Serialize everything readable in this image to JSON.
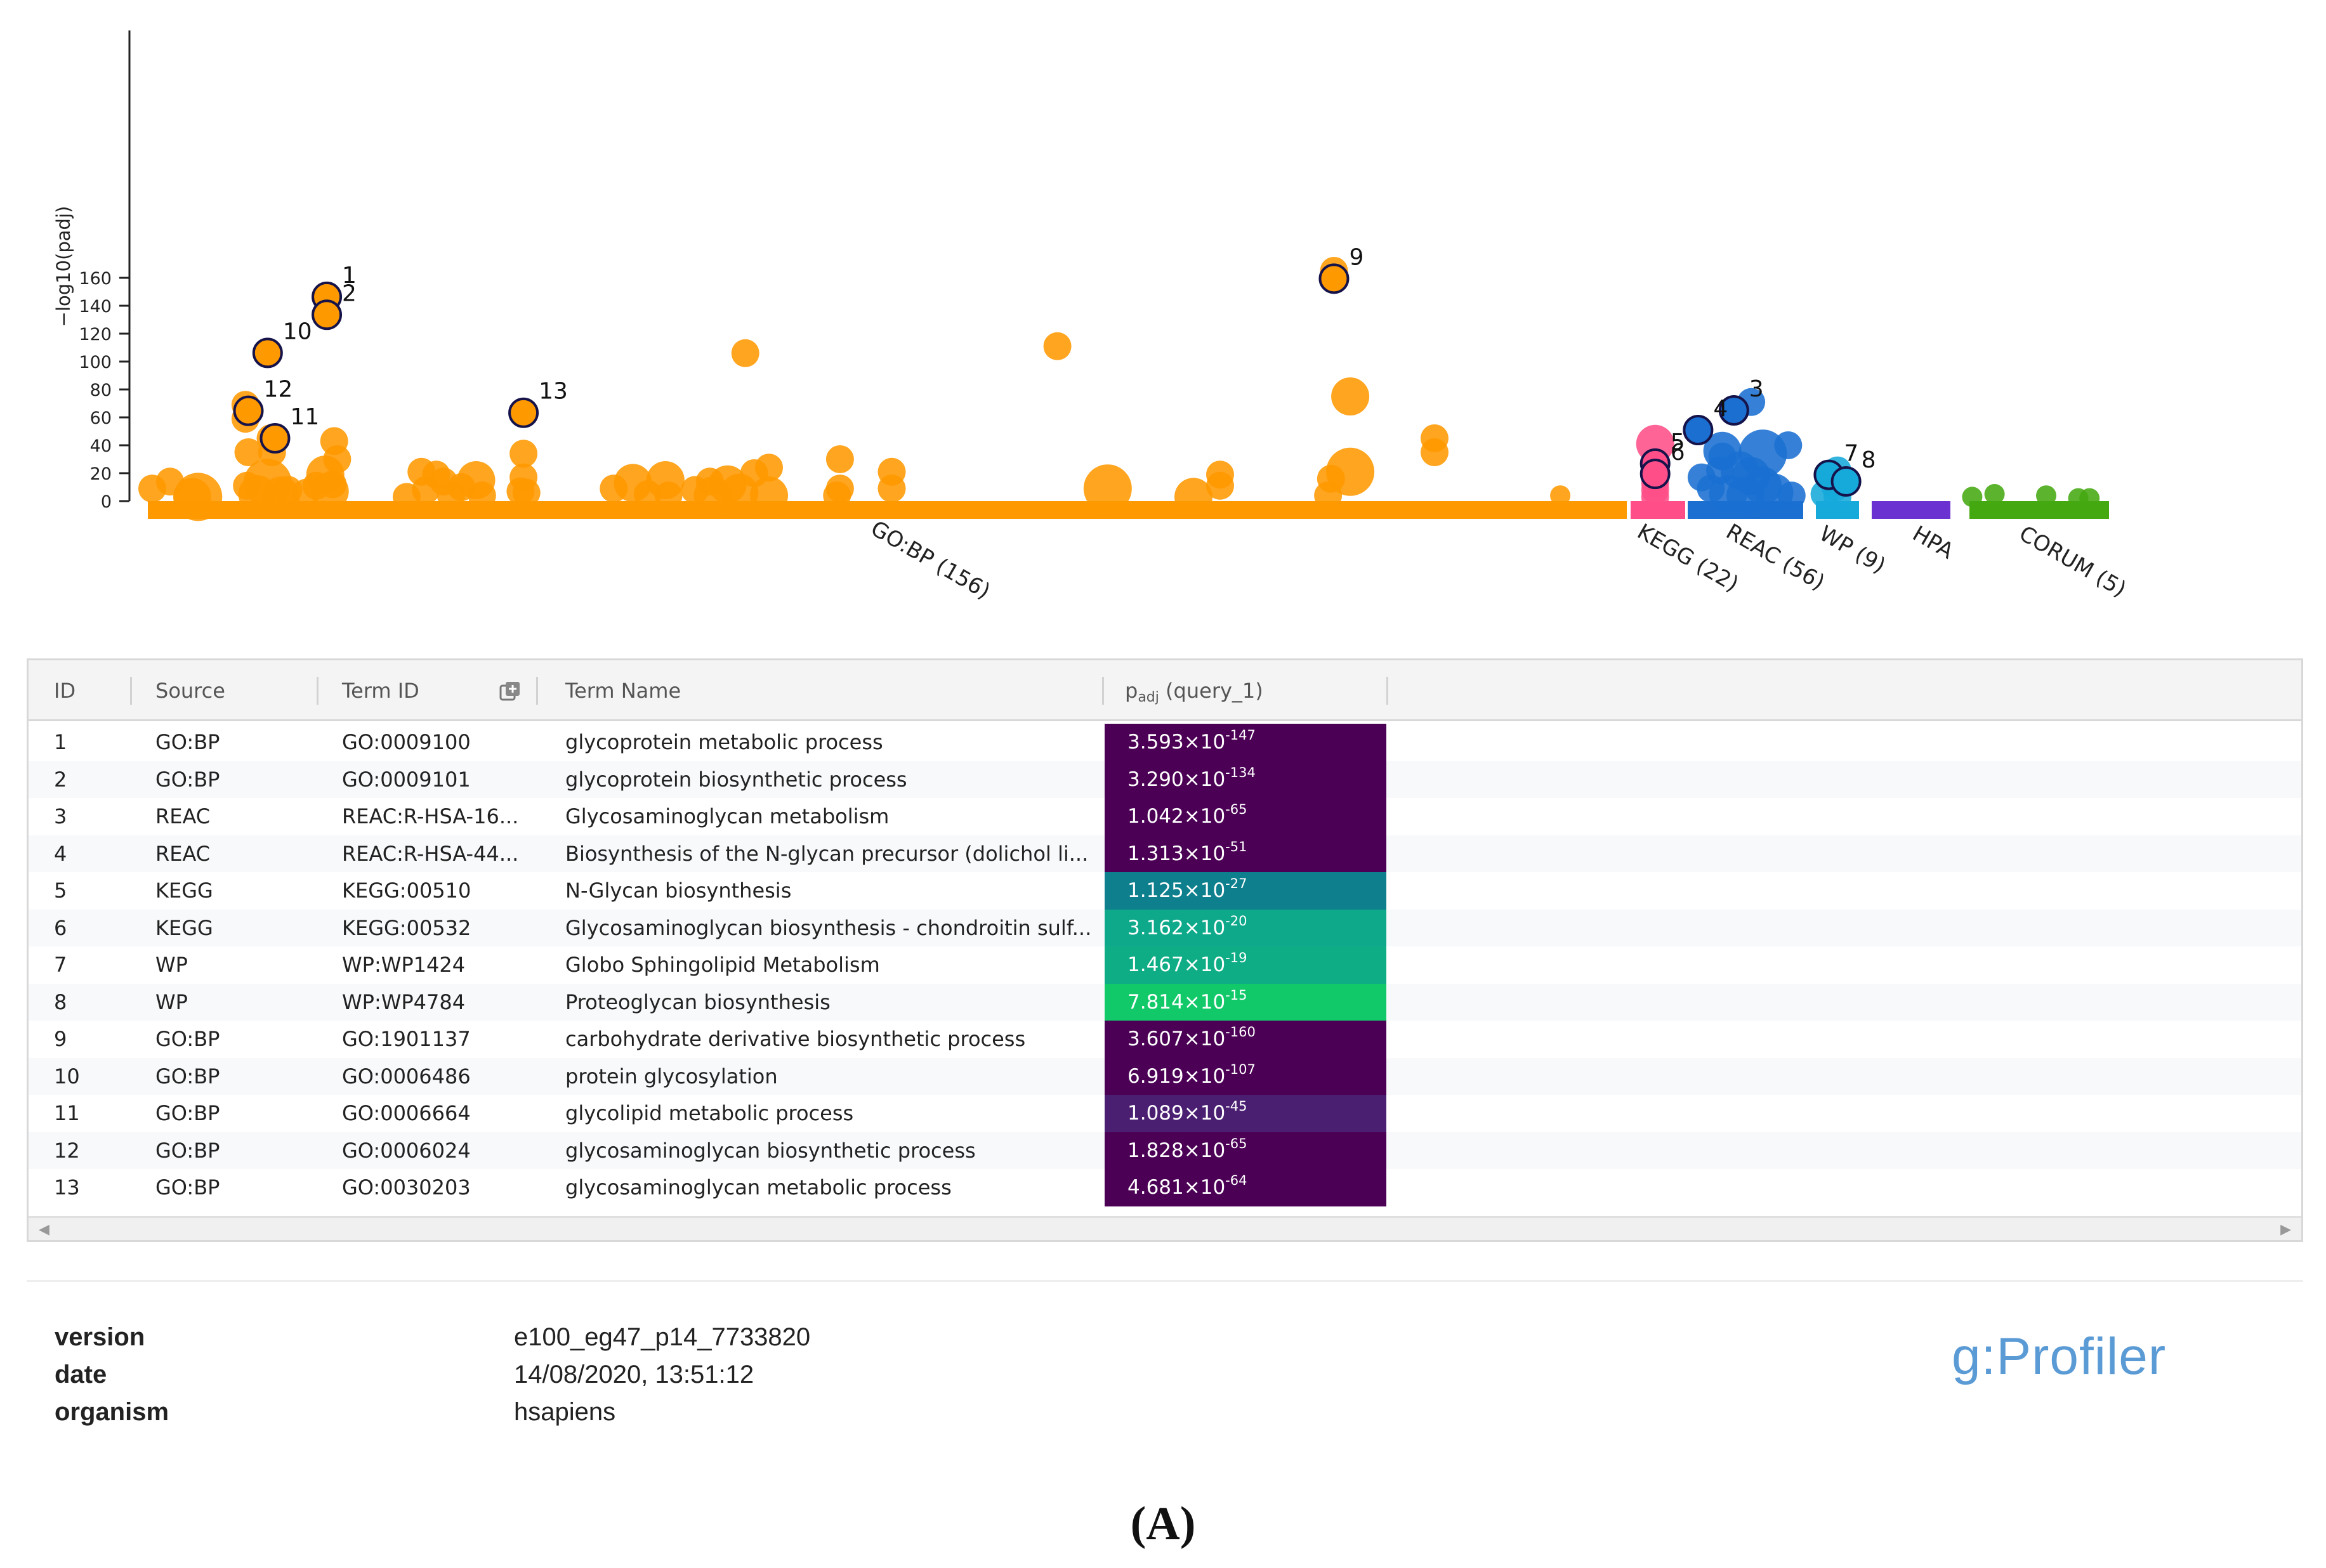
{
  "chart_data": {
    "type": "scatter",
    "ylabel": "−log10(padj)",
    "y_ticks": [
      0,
      20,
      40,
      60,
      80,
      100,
      120,
      140,
      160
    ],
    "ylim": [
      0,
      165
    ],
    "sources": [
      {
        "name": "GO:BP (156)",
        "color": "#ff9900"
      },
      {
        "name": "KEGG (22)",
        "color": "#ff4e88"
      },
      {
        "name": "REAC (56)",
        "color": "#1a6fd1"
      },
      {
        "name": "WP (9)",
        "color": "#16aadb"
      },
      {
        "name": "HPA",
        "color": "#6b31d1"
      },
      {
        "name": "CORUM (5)",
        "color": "#44a811"
      }
    ],
    "highlighted": [
      {
        "id": "1",
        "source": "GO:BP (156)",
        "pos": 0.121,
        "y": 146.4
      },
      {
        "id": "2",
        "source": "GO:BP (156)",
        "pos": 0.121,
        "y": 133.5
      },
      {
        "id": "10",
        "source": "GO:BP (156)",
        "pos": 0.081,
        "y": 106.2
      },
      {
        "id": "12",
        "source": "GO:BP (156)",
        "pos": 0.068,
        "y": 64.7
      },
      {
        "id": "11",
        "source": "GO:BP (156)",
        "pos": 0.086,
        "y": 45.0
      },
      {
        "id": "13",
        "source": "GO:BP (156)",
        "pos": 0.254,
        "y": 63.3
      },
      {
        "id": "9",
        "source": "GO:BP (156)",
        "pos": 0.802,
        "y": 159.4
      },
      {
        "id": "5",
        "source": "KEGG (22)",
        "pos": 0.45,
        "y": 26.9
      },
      {
        "id": "6",
        "source": "KEGG (22)",
        "pos": 0.45,
        "y": 19.5
      },
      {
        "id": "3",
        "source": "REAC (56)",
        "pos": 0.4,
        "y": 65.0
      },
      {
        "id": "4",
        "source": "REAC (56)",
        "pos": 0.09,
        "y": 50.9
      },
      {
        "id": "7",
        "source": "WP (9)",
        "pos": 0.3,
        "y": 18.8
      },
      {
        "id": "8",
        "source": "WP (9)",
        "pos": 0.7,
        "y": 14.1
      }
    ],
    "points": [
      {
        "source": "GO:BP (156)",
        "pos": 0.003,
        "y": 9,
        "r": 1
      },
      {
        "source": "GO:BP (156)",
        "pos": 0.015,
        "y": 14,
        "r": 1
      },
      {
        "source": "GO:BP (156)",
        "pos": 0.03,
        "y": 3,
        "r": 2
      },
      {
        "source": "GO:BP (156)",
        "pos": 0.034,
        "y": 3,
        "r": 3
      },
      {
        "source": "GO:BP (156)",
        "pos": 0.066,
        "y": 69,
        "r": 1
      },
      {
        "source": "GO:BP (156)",
        "pos": 0.066,
        "y": 59,
        "r": 1
      },
      {
        "source": "GO:BP (156)",
        "pos": 0.068,
        "y": 35,
        "r": 1
      },
      {
        "source": "GO:BP (156)",
        "pos": 0.067,
        "y": 11,
        "r": 1
      },
      {
        "source": "GO:BP (156)",
        "pos": 0.074,
        "y": 5,
        "r": 2
      },
      {
        "source": "GO:BP (156)",
        "pos": 0.081,
        "y": 13,
        "r": 3
      },
      {
        "source": "GO:BP (156)",
        "pos": 0.084,
        "y": 35,
        "r": 1
      },
      {
        "source": "GO:BP (156)",
        "pos": 0.083,
        "y": 45,
        "r": 1
      },
      {
        "source": "GO:BP (156)",
        "pos": 0.09,
        "y": 4,
        "r": 2
      },
      {
        "source": "GO:BP (156)",
        "pos": 0.095,
        "y": 8,
        "r": 1
      },
      {
        "source": "GO:BP (156)",
        "pos": 0.107,
        "y": 6,
        "r": 1
      },
      {
        "source": "GO:BP (156)",
        "pos": 0.114,
        "y": 11,
        "r": 1
      },
      {
        "source": "GO:BP (156)",
        "pos": 0.12,
        "y": 19,
        "r": 2
      },
      {
        "source": "GO:BP (156)",
        "pos": 0.123,
        "y": 7,
        "r": 2
      },
      {
        "source": "GO:BP (156)",
        "pos": 0.126,
        "y": 43,
        "r": 1
      },
      {
        "source": "GO:BP (156)",
        "pos": 0.128,
        "y": 30,
        "r": 1
      },
      {
        "source": "GO:BP (156)",
        "pos": 0.125,
        "y": 12,
        "r": 1
      },
      {
        "source": "GO:BP (156)",
        "pos": 0.175,
        "y": 3,
        "r": 1
      },
      {
        "source": "GO:BP (156)",
        "pos": 0.185,
        "y": 21,
        "r": 1
      },
      {
        "source": "GO:BP (156)",
        "pos": 0.188,
        "y": 8,
        "r": 1
      },
      {
        "source": "GO:BP (156)",
        "pos": 0.195,
        "y": 19,
        "r": 1
      },
      {
        "source": "GO:BP (156)",
        "pos": 0.2,
        "y": 14,
        "r": 1
      },
      {
        "source": "GO:BP (156)",
        "pos": 0.205,
        "y": 4,
        "r": 1
      },
      {
        "source": "GO:BP (156)",
        "pos": 0.212,
        "y": 10,
        "r": 1
      },
      {
        "source": "GO:BP (156)",
        "pos": 0.222,
        "y": 15,
        "r": 2
      },
      {
        "source": "GO:BP (156)",
        "pos": 0.226,
        "y": 4,
        "r": 1
      },
      {
        "source": "GO:BP (156)",
        "pos": 0.254,
        "y": 34,
        "r": 1
      },
      {
        "source": "GO:BP (156)",
        "pos": 0.254,
        "y": 17,
        "r": 1
      },
      {
        "source": "GO:BP (156)",
        "pos": 0.252,
        "y": 7,
        "r": 1
      },
      {
        "source": "GO:BP (156)",
        "pos": 0.256,
        "y": 6,
        "r": 1
      },
      {
        "source": "GO:BP (156)",
        "pos": 0.315,
        "y": 9,
        "r": 1
      },
      {
        "source": "GO:BP (156)",
        "pos": 0.328,
        "y": 13,
        "r": 2
      },
      {
        "source": "GO:BP (156)",
        "pos": 0.338,
        "y": 5,
        "r": 1
      },
      {
        "source": "GO:BP (156)",
        "pos": 0.35,
        "y": 15,
        "r": 2
      },
      {
        "source": "GO:BP (156)",
        "pos": 0.352,
        "y": 4,
        "r": 1
      },
      {
        "source": "GO:BP (156)",
        "pos": 0.37,
        "y": 8,
        "r": 1
      },
      {
        "source": "GO:BP (156)",
        "pos": 0.38,
        "y": 14,
        "r": 1
      },
      {
        "source": "GO:BP (156)",
        "pos": 0.382,
        "y": 4,
        "r": 2
      },
      {
        "source": "GO:BP (156)",
        "pos": 0.392,
        "y": 12,
        "r": 2
      },
      {
        "source": "GO:BP (156)",
        "pos": 0.4,
        "y": 6,
        "r": 2
      },
      {
        "source": "GO:BP (156)",
        "pos": 0.41,
        "y": 20,
        "r": 1
      },
      {
        "source": "GO:BP (156)",
        "pos": 0.42,
        "y": 24,
        "r": 1
      },
      {
        "source": "GO:BP (156)",
        "pos": 0.42,
        "y": 4,
        "r": 2
      },
      {
        "source": "GO:BP (156)",
        "pos": 0.404,
        "y": 106,
        "r": 1
      },
      {
        "source": "GO:BP (156)",
        "pos": 0.468,
        "y": 30,
        "r": 1
      },
      {
        "source": "GO:BP (156)",
        "pos": 0.468,
        "y": 9,
        "r": 1
      },
      {
        "source": "GO:BP (156)",
        "pos": 0.466,
        "y": 4,
        "r": 1
      },
      {
        "source": "GO:BP (156)",
        "pos": 0.503,
        "y": 21,
        "r": 1
      },
      {
        "source": "GO:BP (156)",
        "pos": 0.503,
        "y": 9,
        "r": 1
      },
      {
        "source": "GO:BP (156)",
        "pos": 0.615,
        "y": 111,
        "r": 1
      },
      {
        "source": "GO:BP (156)",
        "pos": 0.649,
        "y": 9,
        "r": 3
      },
      {
        "source": "GO:BP (156)",
        "pos": 0.707,
        "y": 3,
        "r": 2
      },
      {
        "source": "GO:BP (156)",
        "pos": 0.725,
        "y": 19,
        "r": 1
      },
      {
        "source": "GO:BP (156)",
        "pos": 0.725,
        "y": 11,
        "r": 1
      },
      {
        "source": "GO:BP (156)",
        "pos": 0.802,
        "y": 165,
        "r": 1
      },
      {
        "source": "GO:BP (156)",
        "pos": 0.813,
        "y": 75,
        "r": 2
      },
      {
        "source": "GO:BP (156)",
        "pos": 0.813,
        "y": 21,
        "r": 3
      },
      {
        "source": "GO:BP (156)",
        "pos": 0.8,
        "y": 16,
        "r": 1
      },
      {
        "source": "GO:BP (156)",
        "pos": 0.798,
        "y": 4,
        "r": 1
      },
      {
        "source": "GO:BP (156)",
        "pos": 0.87,
        "y": 45,
        "r": 1
      },
      {
        "source": "GO:BP (156)",
        "pos": 0.87,
        "y": 35,
        "r": 1
      },
      {
        "source": "GO:BP (156)",
        "pos": 0.955,
        "y": 4,
        "r": 0
      },
      {
        "source": "KEGG (22)",
        "pos": 0.45,
        "y": 41,
        "r": 2
      },
      {
        "source": "KEGG (22)",
        "pos": 0.45,
        "y": 13,
        "r": 1
      },
      {
        "source": "KEGG (22)",
        "pos": 0.45,
        "y": 8,
        "r": 1
      },
      {
        "source": "KEGG (22)",
        "pos": 0.45,
        "y": 3,
        "r": 1
      },
      {
        "source": "REAC (56)",
        "pos": 0.55,
        "y": 71,
        "r": 1
      },
      {
        "source": "REAC (56)",
        "pos": 0.3,
        "y": 36,
        "r": 2
      },
      {
        "source": "REAC (56)",
        "pos": 0.3,
        "y": 32,
        "r": 1
      },
      {
        "source": "REAC (56)",
        "pos": 0.65,
        "y": 34,
        "r": 3
      },
      {
        "source": "REAC (56)",
        "pos": 0.87,
        "y": 40,
        "r": 1
      },
      {
        "source": "REAC (56)",
        "pos": 0.12,
        "y": 17,
        "r": 1
      },
      {
        "source": "REAC (56)",
        "pos": 0.28,
        "y": 22,
        "r": 1
      },
      {
        "source": "REAC (56)",
        "pos": 0.45,
        "y": 22,
        "r": 2
      },
      {
        "source": "REAC (56)",
        "pos": 0.55,
        "y": 18,
        "r": 2
      },
      {
        "source": "REAC (56)",
        "pos": 0.65,
        "y": 11,
        "r": 2
      },
      {
        "source": "REAC (56)",
        "pos": 0.2,
        "y": 9,
        "r": 1
      },
      {
        "source": "REAC (56)",
        "pos": 0.35,
        "y": 5,
        "r": 2
      },
      {
        "source": "REAC (56)",
        "pos": 0.5,
        "y": 4,
        "r": 2
      },
      {
        "source": "REAC (56)",
        "pos": 0.75,
        "y": 6,
        "r": 2
      },
      {
        "source": "REAC (56)",
        "pos": 0.9,
        "y": 4,
        "r": 1
      },
      {
        "source": "WP (9)",
        "pos": 0.5,
        "y": 22,
        "r": 1
      },
      {
        "source": "WP (9)",
        "pos": 0.45,
        "y": 10,
        "r": 1
      },
      {
        "source": "WP (9)",
        "pos": 0.2,
        "y": 5,
        "r": 1
      },
      {
        "source": "WP (9)",
        "pos": 0.5,
        "y": 3,
        "r": 1
      },
      {
        "source": "CORUM (5)",
        "pos": 0.02,
        "y": 3,
        "r": 0
      },
      {
        "source": "CORUM (5)",
        "pos": 0.18,
        "y": 5,
        "r": 0
      },
      {
        "source": "CORUM (5)",
        "pos": 0.55,
        "y": 4,
        "r": 0
      },
      {
        "source": "CORUM (5)",
        "pos": 0.78,
        "y": 2,
        "r": 0
      },
      {
        "source": "CORUM (5)",
        "pos": 0.86,
        "y": 2,
        "r": 0
      }
    ]
  },
  "table": {
    "headers": {
      "id": "ID",
      "source": "Source",
      "term_id": "Term ID",
      "term_name": "Term Name",
      "padj_main": "p",
      "padj_sub": "adj",
      "padj_rest": " (query_1)"
    },
    "rows": [
      {
        "id": "1",
        "source": "GO:BP",
        "term_id": "GO:0009100",
        "term_name": "glycoprotein metabolic process",
        "padj_mantissa": "3.593×10",
        "padj_exp": "-147",
        "color": "#4b0055"
      },
      {
        "id": "2",
        "source": "GO:BP",
        "term_id": "GO:0009101",
        "term_name": "glycoprotein biosynthetic process",
        "padj_mantissa": "3.290×10",
        "padj_exp": "-134",
        "color": "#4b0055"
      },
      {
        "id": "3",
        "source": "REAC",
        "term_id": "REAC:R-HSA-16...",
        "term_name": "Glycosaminoglycan metabolism",
        "padj_mantissa": "1.042×10",
        "padj_exp": "-65",
        "color": "#4b0055"
      },
      {
        "id": "4",
        "source": "REAC",
        "term_id": "REAC:R-HSA-44...",
        "term_name": "Biosynthesis of the N-glycan precursor (dolichol li...",
        "padj_mantissa": "1.313×10",
        "padj_exp": "-51",
        "color": "#4b0055"
      },
      {
        "id": "5",
        "source": "KEGG",
        "term_id": "KEGG:00510",
        "term_name": "N-Glycan biosynthesis",
        "padj_mantissa": "1.125×10",
        "padj_exp": "-27",
        "color": "#0e7f8c"
      },
      {
        "id": "6",
        "source": "KEGG",
        "term_id": "KEGG:00532",
        "term_name": "Glycosaminoglycan biosynthesis - chondroitin sulf...",
        "padj_mantissa": "3.162×10",
        "padj_exp": "-20",
        "color": "#0ea98a"
      },
      {
        "id": "7",
        "source": "WP",
        "term_id": "WP:WP1424",
        "term_name": "Globo Sphingolipid Metabolism",
        "padj_mantissa": "1.467×10",
        "padj_exp": "-19",
        "color": "#0fad85"
      },
      {
        "id": "8",
        "source": "WP",
        "term_id": "WP:WP4784",
        "term_name": "Proteoglycan biosynthesis",
        "padj_mantissa": "7.814×10",
        "padj_exp": "-15",
        "color": "#12c96a"
      },
      {
        "id": "9",
        "source": "GO:BP",
        "term_id": "GO:1901137",
        "term_name": "carbohydrate derivative biosynthetic process",
        "padj_mantissa": "3.607×10",
        "padj_exp": "-160",
        "color": "#4b0055"
      },
      {
        "id": "10",
        "source": "GO:BP",
        "term_id": "GO:0006486",
        "term_name": "protein glycosylation",
        "padj_mantissa": "6.919×10",
        "padj_exp": "-107",
        "color": "#4b0055"
      },
      {
        "id": "11",
        "source": "GO:BP",
        "term_id": "GO:0006664",
        "term_name": "glycolipid metabolic process",
        "padj_mantissa": "1.089×10",
        "padj_exp": "-45",
        "color": "#4a1f72"
      },
      {
        "id": "12",
        "source": "GO:BP",
        "term_id": "GO:0006024",
        "term_name": "glycosaminoglycan biosynthetic process",
        "padj_mantissa": "1.828×10",
        "padj_exp": "-65",
        "color": "#4b0055"
      },
      {
        "id": "13",
        "source": "GO:BP",
        "term_id": "GO:0030203",
        "term_name": "glycosaminoglycan metabolic process",
        "padj_mantissa": "4.681×10",
        "padj_exp": "-64",
        "color": "#4b0055"
      }
    ]
  },
  "meta": {
    "version_label": "version",
    "version_value": "e100_eg47_p14_7733820",
    "date_label": "date",
    "date_value": "14/08/2020, 13:51:12",
    "organism_label": "organism",
    "organism_value": "hsapiens"
  },
  "logo_text": "g:Profiler",
  "caption": "(A)"
}
